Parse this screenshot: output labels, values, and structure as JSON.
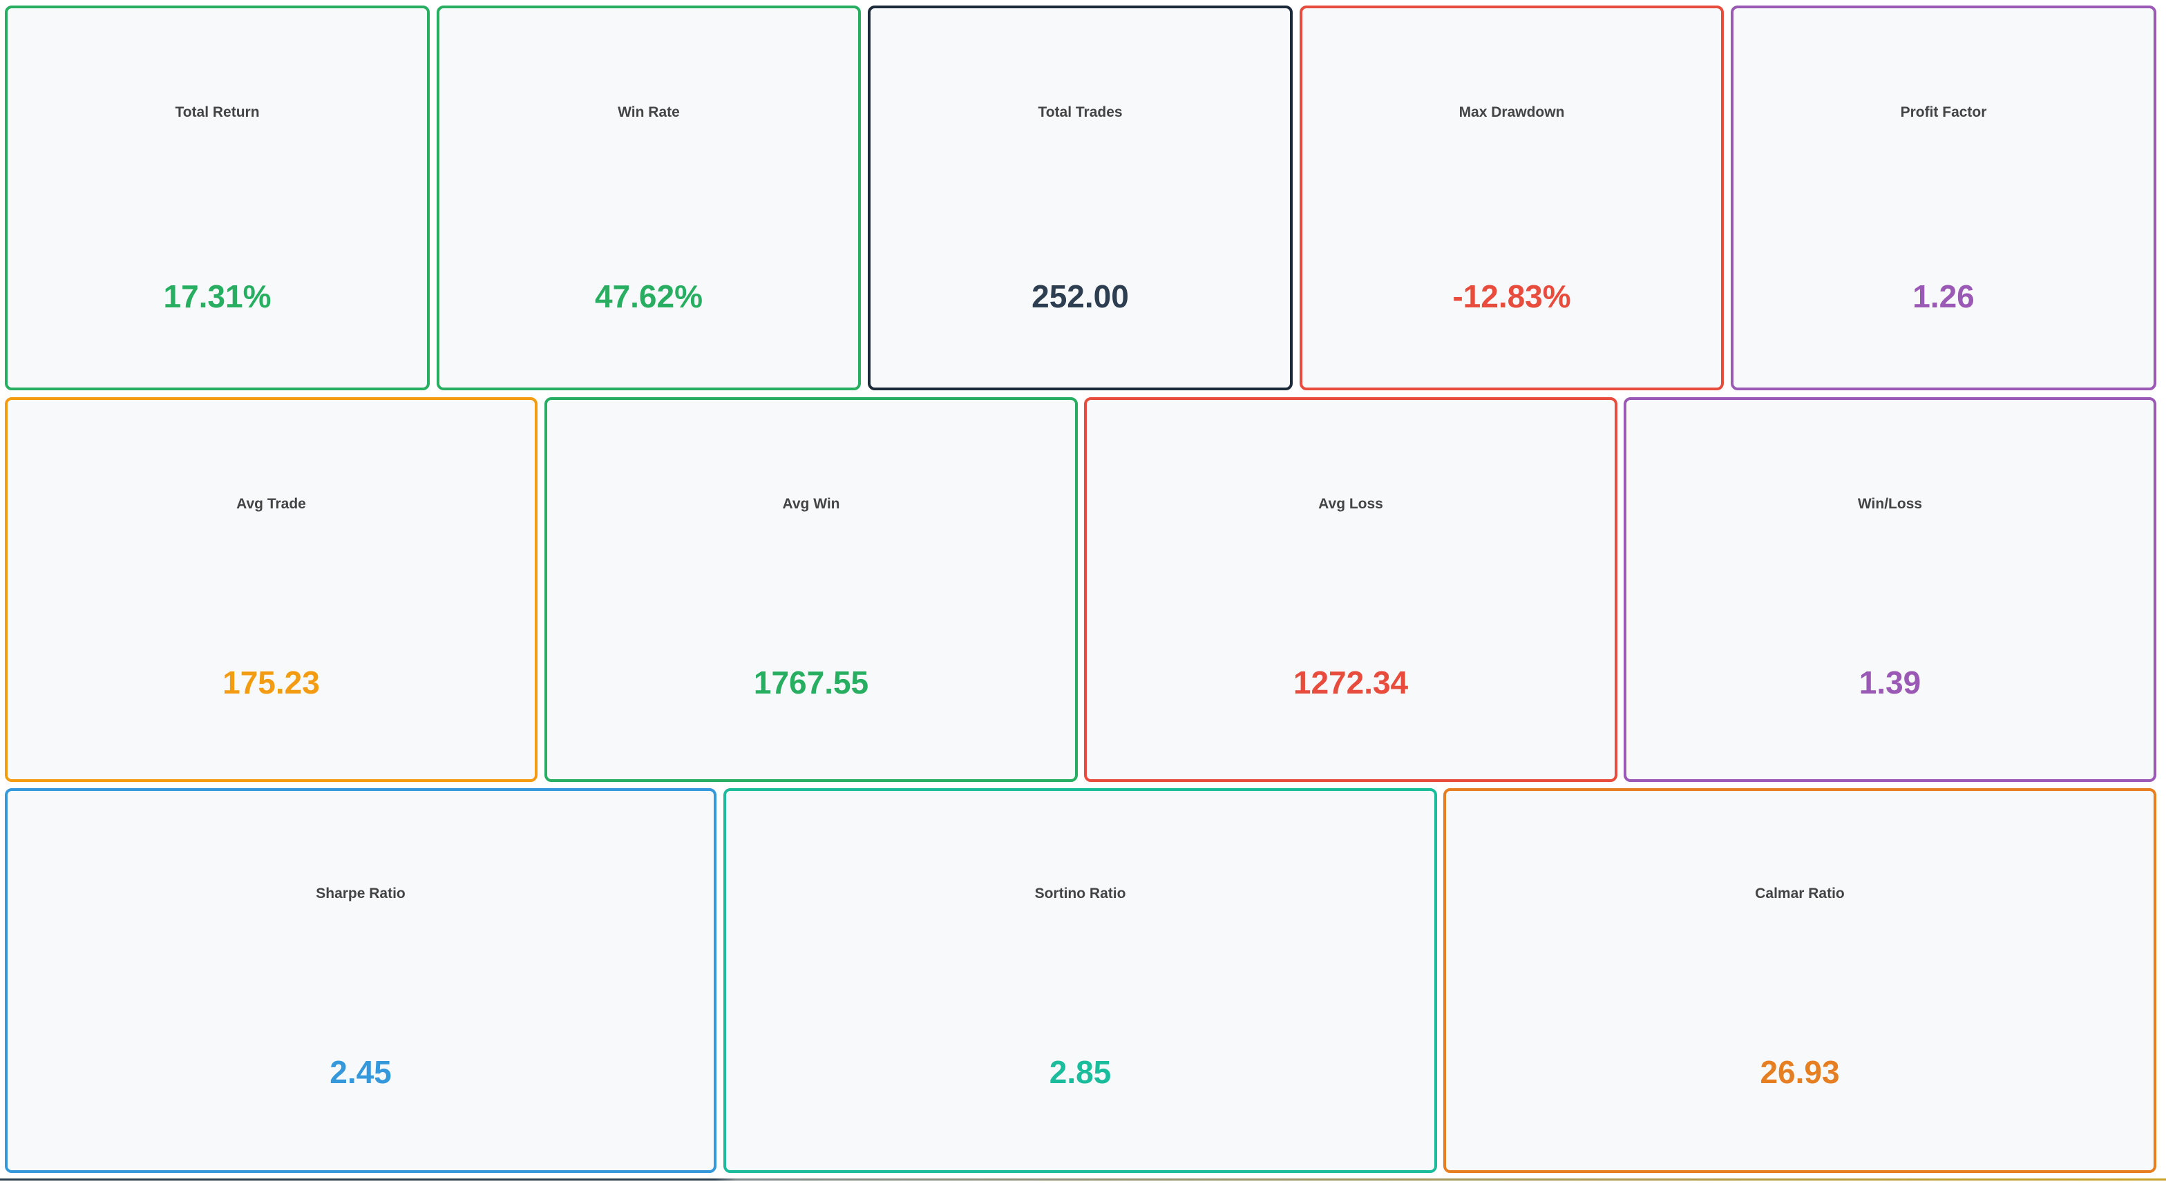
{
  "metrics": {
    "total_return": {
      "label": "Total Return",
      "value": "17.31%",
      "color": "#27ae60"
    },
    "win_rate": {
      "label": "Win Rate",
      "value": "47.62%",
      "color": "#27ae60"
    },
    "total_trades": {
      "label": "Total Trades",
      "value": "252.00",
      "color": "#2c3e50",
      "border": "#1c2a3a"
    },
    "max_drawdown": {
      "label": "Max Drawdown",
      "value": "-12.83%",
      "color": "#e74c3c"
    },
    "profit_factor": {
      "label": "Profit Factor",
      "value": "1.26",
      "color": "#9b59b6"
    },
    "avg_trade": {
      "label": "Avg Trade",
      "value": "175.23",
      "color": "#f39c12"
    },
    "avg_win": {
      "label": "Avg Win",
      "value": "1767.55",
      "color": "#27ae60"
    },
    "avg_loss": {
      "label": "Avg Loss",
      "value": "1272.34",
      "color": "#e74c3c"
    },
    "win_loss": {
      "label": "Win/Loss",
      "value": "1.39",
      "color": "#9b59b6"
    },
    "sharpe_ratio": {
      "label": "Sharpe Ratio",
      "value": "2.45",
      "color": "#3498db"
    },
    "sortino_ratio": {
      "label": "Sortino Ratio",
      "value": "2.85",
      "color": "#1abc9c"
    },
    "calmar_ratio": {
      "label": "Calmar Ratio",
      "value": "26.93",
      "color": "#e67e22"
    }
  }
}
